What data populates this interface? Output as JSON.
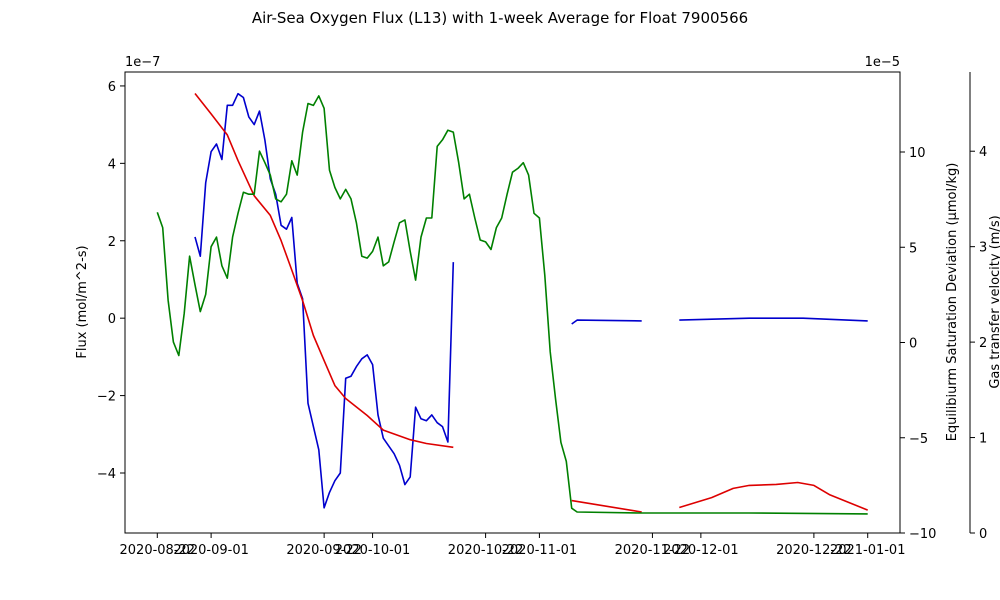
{
  "chart_data": {
    "type": "line",
    "title": "Air-Sea Oxygen Flux (L13) with 1-week Average for Float 7900566",
    "ylabel": "Flux (mol/m^2-s)",
    "y2label": "Equilibiurm Saturation Deviation (µmol/kg)",
    "y3label": "Gas transfer velocity (m/s)",
    "y_offset_text": "1e−7",
    "y2_offset_text": "1e−5",
    "xlim": [
      "2020-08-16",
      "2021-01-07"
    ],
    "xticks": [
      "2020-08-22",
      "2020-09-01",
      "2020-09-22",
      "2020-10-01",
      "2020-10-22",
      "2020-11-01",
      "2020-11-22",
      "2020-12-01",
      "2020-12-22",
      "2021-01-01"
    ],
    "ylim": [
      -5.55,
      6.36
    ],
    "yticks": [
      {
        "value": -4,
        "label": "−4"
      },
      {
        "value": -2,
        "label": "−2"
      },
      0,
      2,
      4,
      6
    ],
    "y2lim": [
      -10,
      14.2
    ],
    "y2ticks": [
      {
        "value": -10,
        "label": "−10"
      },
      {
        "value": -5,
        "label": "−5"
      },
      0,
      5,
      10
    ],
    "y3lim": [
      0,
      4.83
    ],
    "y3ticks": [
      0,
      1,
      2,
      3,
      4
    ],
    "axis_colors": {
      "y": "#0000cd",
      "y2": "#dd0000",
      "y3": "#008000"
    },
    "series": [
      {
        "axis": "y",
        "color": "#0000cd",
        "x": [
          "2020-08-29",
          "2020-08-30",
          "2020-08-31",
          "2020-09-01",
          "2020-09-02",
          "2020-09-03",
          "2020-09-04",
          "2020-09-05",
          "2020-09-06",
          "2020-09-07",
          "2020-09-08",
          "2020-09-09",
          "2020-09-10",
          "2020-09-11",
          "2020-09-12",
          "2020-09-13",
          "2020-09-14",
          "2020-09-15",
          "2020-09-16",
          "2020-09-17",
          "2020-09-18",
          "2020-09-19",
          "2020-09-20",
          "2020-09-21",
          "2020-09-22",
          "2020-09-23",
          "2020-09-24",
          "2020-09-25",
          "2020-09-26",
          "2020-09-27",
          "2020-09-28",
          "2020-09-29",
          "2020-09-30",
          "2020-10-01",
          "2020-10-02",
          "2020-10-03",
          "2020-10-04",
          "2020-10-05",
          "2020-10-06",
          "2020-10-07",
          "2020-10-08",
          "2020-10-09",
          "2020-10-10",
          "2020-10-11",
          "2020-10-12",
          "2020-10-13",
          "2020-10-14",
          "2020-10-15",
          "2020-10-16",
          "2020-10-17",
          "2020-11-07",
          "2020-11-08",
          "2020-11-20",
          "2020-11-24",
          "2020-11-27",
          "2020-12-10",
          "2020-12-20",
          "2021-01-01"
        ],
        "values": [
          2.1,
          1.6,
          3.5,
          4.3,
          4.5,
          4.1,
          5.5,
          5.5,
          5.8,
          5.7,
          5.2,
          5.0,
          5.35,
          4.6,
          3.6,
          3.2,
          2.4,
          2.3,
          2.6,
          0.9,
          0.5,
          -2.2,
          -2.8,
          -3.4,
          -4.9,
          -4.5,
          -4.2,
          -4.0,
          -1.55,
          -1.5,
          -1.25,
          -1.05,
          -0.95,
          -1.2,
          -2.5,
          -3.1,
          -3.3,
          -3.5,
          -3.8,
          -4.3,
          -4.1,
          -2.3,
          -2.6,
          -2.65,
          -2.5,
          -2.7,
          -2.8,
          -3.2,
          1.45,
          null,
          -0.15,
          -0.05,
          -0.07,
          null,
          -0.05,
          0.0,
          0.0,
          -0.07
        ]
      },
      {
        "axis": "y2",
        "color": "#dd0000",
        "x": [
          "2020-08-29",
          "2020-09-01",
          "2020-09-04",
          "2020-09-06",
          "2020-09-09",
          "2020-09-12",
          "2020-09-14",
          "2020-09-16",
          "2020-09-18",
          "2020-09-20",
          "2020-09-22",
          "2020-09-24",
          "2020-09-26",
          "2020-09-30",
          "2020-10-03",
          "2020-10-08",
          "2020-10-11",
          "2020-10-16",
          "2020-10-17",
          "2020-11-07",
          "2020-11-20",
          "2020-11-24",
          "2020-11-27",
          "2020-12-03",
          "2020-12-07",
          "2020-12-10",
          "2020-12-15",
          "2020-12-19",
          "2020-12-22",
          "2020-12-25",
          "2021-01-01"
        ],
        "values": [
          13.07,
          12.0,
          10.9,
          9.55,
          7.7,
          6.67,
          5.35,
          3.8,
          2.2,
          0.37,
          -0.95,
          -2.26,
          -2.94,
          -3.83,
          -4.6,
          -5.1,
          -5.3,
          -5.5,
          null,
          -8.3,
          -8.9,
          null,
          -8.66,
          -8.14,
          -7.66,
          -7.5,
          -7.45,
          -7.35,
          -7.5,
          -8.0,
          -8.8
        ]
      },
      {
        "axis": "y3",
        "color": "#008000",
        "x": [
          "2020-08-22",
          "2020-08-23",
          "2020-08-24",
          "2020-08-25",
          "2020-08-26",
          "2020-08-27",
          "2020-08-28",
          "2020-08-29",
          "2020-08-30",
          "2020-08-31",
          "2020-09-01",
          "2020-09-02",
          "2020-09-03",
          "2020-09-04",
          "2020-09-05",
          "2020-09-06",
          "2020-09-07",
          "2020-09-08",
          "2020-09-09",
          "2020-09-10",
          "2020-09-11",
          "2020-09-12",
          "2020-09-13",
          "2020-09-14",
          "2020-09-15",
          "2020-09-16",
          "2020-09-17",
          "2020-09-18",
          "2020-09-19",
          "2020-09-20",
          "2020-09-21",
          "2020-09-22",
          "2020-09-23",
          "2020-09-24",
          "2020-09-25",
          "2020-09-26",
          "2020-09-27",
          "2020-09-28",
          "2020-09-29",
          "2020-09-30",
          "2020-10-01",
          "2020-10-02",
          "2020-10-03",
          "2020-10-04",
          "2020-10-05",
          "2020-10-06",
          "2020-10-07",
          "2020-10-08",
          "2020-10-09",
          "2020-10-10",
          "2020-10-11",
          "2020-10-12",
          "2020-10-13",
          "2020-10-14",
          "2020-10-15",
          "2020-10-16",
          "2020-10-17",
          "2020-10-18",
          "2020-10-19",
          "2020-10-20",
          "2020-10-21",
          "2020-10-22",
          "2020-10-23",
          "2020-10-24",
          "2020-10-25",
          "2020-10-26",
          "2020-10-27",
          "2020-10-28",
          "2020-10-29",
          "2020-10-30",
          "2020-10-31",
          "2020-11-01",
          "2020-11-02",
          "2020-11-03",
          "2020-11-04",
          "2020-11-05",
          "2020-11-06",
          "2020-11-07",
          "2020-11-08",
          "2020-11-20",
          "2020-12-10",
          "2021-01-01"
        ],
        "values": [
          3.36,
          3.2,
          2.44,
          2.0,
          1.86,
          2.3,
          2.9,
          2.6,
          2.32,
          2.5,
          3.0,
          3.1,
          2.8,
          2.67,
          3.1,
          3.35,
          3.57,
          3.55,
          3.55,
          4.0,
          3.88,
          3.75,
          3.5,
          3.47,
          3.55,
          3.9,
          3.75,
          4.2,
          4.5,
          4.48,
          4.58,
          4.45,
          3.8,
          3.62,
          3.5,
          3.6,
          3.5,
          3.25,
          2.9,
          2.88,
          2.95,
          3.1,
          2.8,
          2.84,
          3.05,
          3.25,
          3.28,
          2.95,
          2.65,
          3.1,
          3.3,
          3.3,
          4.05,
          4.12,
          4.22,
          4.2,
          3.88,
          3.5,
          3.55,
          3.3,
          3.07,
          3.05,
          2.97,
          3.2,
          3.3,
          3.55,
          3.78,
          3.82,
          3.88,
          3.75,
          3.35,
          3.3,
          2.7,
          1.9,
          1.4,
          0.95,
          0.75,
          0.26,
          0.22,
          0.21,
          0.21,
          0.2
        ]
      }
    ]
  }
}
